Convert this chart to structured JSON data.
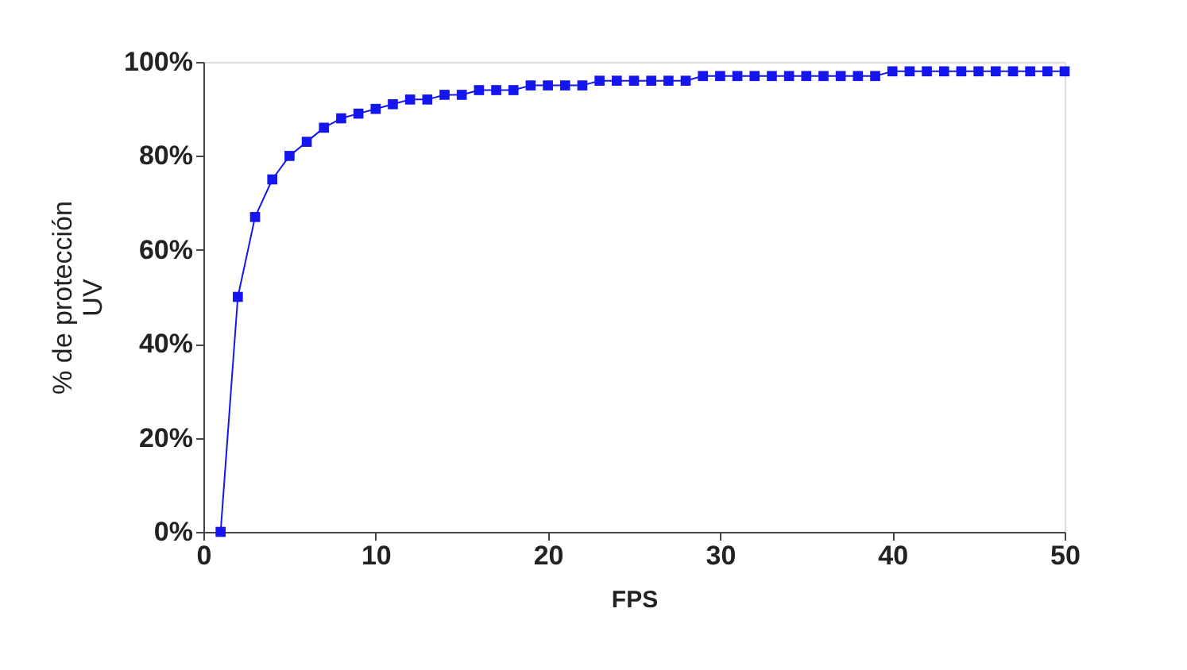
{
  "chart_data": {
    "type": "line",
    "xlabel": "FPS",
    "ylabel": "% de protección UV",
    "x": [
      1,
      2,
      3,
      4,
      5,
      6,
      7,
      8,
      9,
      10,
      11,
      12,
      13,
      14,
      15,
      16,
      17,
      18,
      19,
      20,
      21,
      22,
      23,
      24,
      25,
      26,
      27,
      28,
      29,
      30,
      31,
      32,
      33,
      34,
      35,
      36,
      37,
      38,
      39,
      40,
      41,
      42,
      43,
      44,
      45,
      46,
      47,
      48,
      49,
      50
    ],
    "series": [
      {
        "color": "#1515f0",
        "values": [
          0,
          50,
          67,
          75,
          80,
          83,
          86,
          88,
          89,
          90,
          91,
          92,
          92,
          93,
          93,
          94,
          94,
          94,
          95,
          95,
          95,
          95,
          96,
          96,
          96,
          96,
          96,
          96,
          97,
          97,
          97,
          97,
          97,
          97,
          97,
          97,
          97,
          97,
          97,
          98,
          98,
          98,
          98,
          98,
          98,
          98,
          98,
          98,
          98,
          98
        ]
      }
    ],
    "xlim": [
      0,
      50
    ],
    "xticks": [
      0,
      10,
      20,
      30,
      40,
      50
    ],
    "ylim": [
      0,
      100
    ],
    "yticks": [
      {
        "value": 0,
        "label": "0%"
      },
      {
        "value": 20,
        "label": "20%"
      },
      {
        "value": 40,
        "label": "40%"
      },
      {
        "value": 60,
        "label": "60%"
      },
      {
        "value": 80,
        "label": "80%"
      },
      {
        "value": 100,
        "label": "100%"
      }
    ],
    "grid": false,
    "marker": "square",
    "line_style": "solid"
  }
}
